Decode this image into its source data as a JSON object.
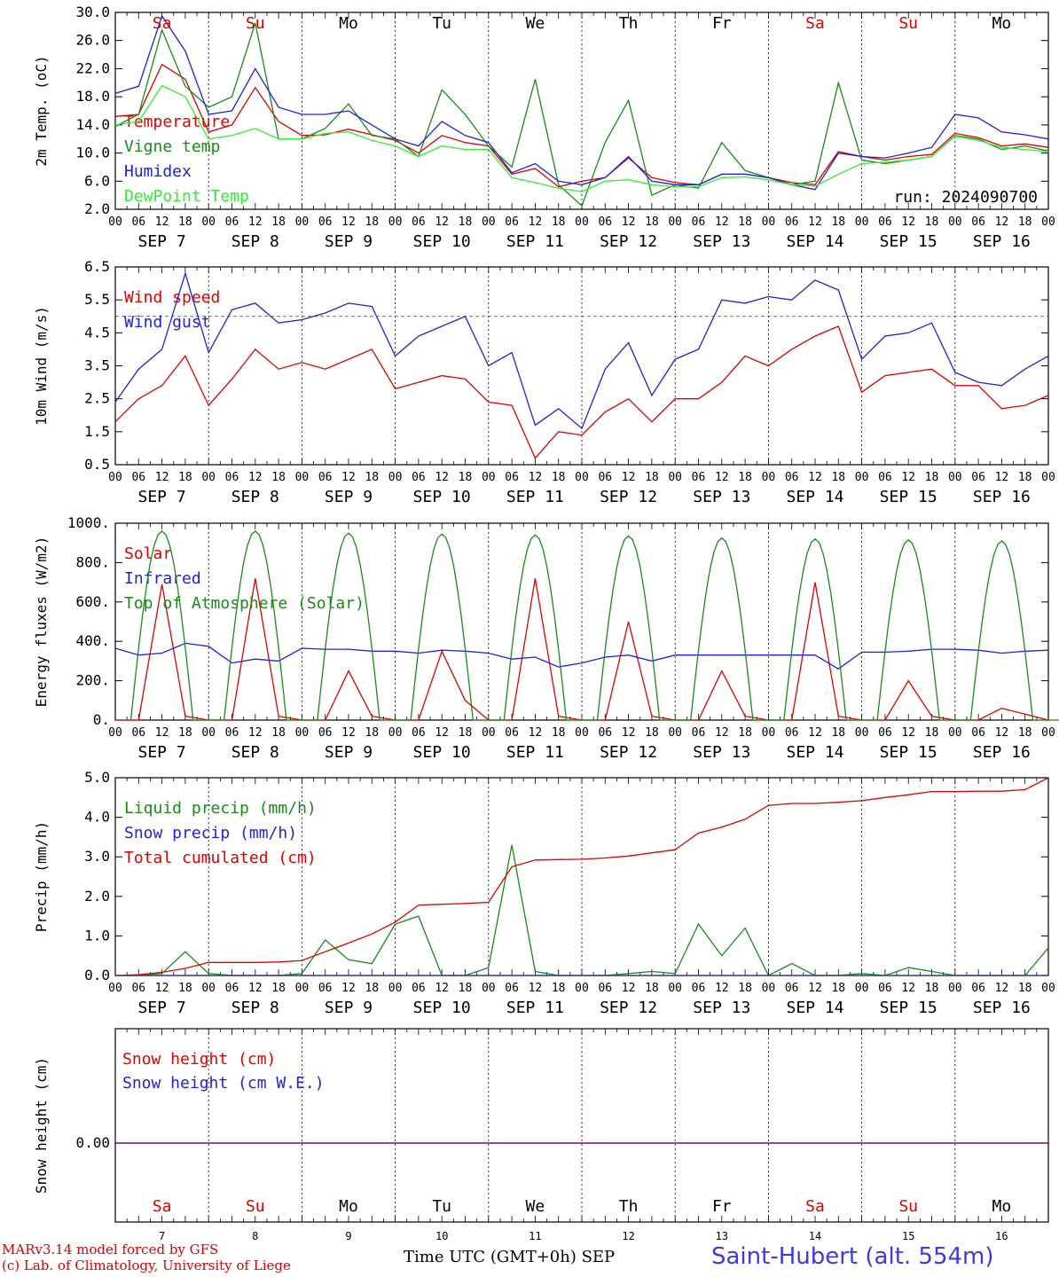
{
  "days": [
    {
      "dow": "Sa",
      "weekend": true,
      "month": "SEP",
      "day": "7"
    },
    {
      "dow": "Su",
      "weekend": true,
      "month": "SEP",
      "day": "8"
    },
    {
      "dow": "Mo",
      "weekend": false,
      "month": "SEP",
      "day": "9"
    },
    {
      "dow": "Tu",
      "weekend": false,
      "month": "SEP",
      "day": "10"
    },
    {
      "dow": "We",
      "weekend": false,
      "month": "SEP",
      "day": "11"
    },
    {
      "dow": "Th",
      "weekend": false,
      "month": "SEP",
      "day": "12"
    },
    {
      "dow": "Fr",
      "weekend": false,
      "month": "SEP",
      "day": "13"
    },
    {
      "dow": "Sa",
      "weekend": true,
      "month": "SEP",
      "day": "14"
    },
    {
      "dow": "Su",
      "weekend": true,
      "month": "SEP",
      "day": "15"
    },
    {
      "dow": "Mo",
      "weekend": false,
      "month": "SEP",
      "day": "16"
    }
  ],
  "hour_ticks": [
    "00",
    "06",
    "12",
    "18"
  ],
  "colors": {
    "red": "#e00000",
    "green": "#1a8a1a",
    "blue": "#2020e0",
    "lightgreen": "#33ee33",
    "purple": "#800080",
    "weekend": "#e00000"
  },
  "footer": {
    "credit1": "MARv3.14 model forced by GFS",
    "credit2": "(c) Lab. of Climatology, University of Liege",
    "xlabel": "Time UTC (GMT+0h) SEP",
    "station": "Saint-Hubert (alt. 554m)"
  },
  "chart_data": [
    {
      "type": "line",
      "ylabel": "2m Temp. (oC)",
      "ylim": [
        2.0,
        30.0
      ],
      "yticks": [
        "2.0",
        "6.0",
        "10.0",
        "14.0",
        "18.0",
        "22.0",
        "26.0",
        "30.0"
      ],
      "annotation": "run: 2024090700",
      "x_hours": [
        0,
        6,
        12,
        18,
        24,
        30,
        36,
        42,
        48,
        54,
        60,
        66,
        72,
        78,
        84,
        90,
        96,
        102,
        108,
        114,
        120,
        126,
        132,
        138,
        144,
        150,
        156,
        162,
        168,
        174,
        180,
        186,
        192,
        198,
        204,
        210,
        216,
        222,
        228,
        234,
        240
      ],
      "series": [
        {
          "name": "Temperature",
          "color": "red",
          "values": [
            15.2,
            15.5,
            22.6,
            20.5,
            13.0,
            14.0,
            19.3,
            14.5,
            12.5,
            12.6,
            13.4,
            12.6,
            11.8,
            10.0,
            12.5,
            11.5,
            11.0,
            7.0,
            7.8,
            5.2,
            6.0,
            6.5,
            9.3,
            6.5,
            5.8,
            5.5,
            7.0,
            7.0,
            6.5,
            5.8,
            5.5,
            10.2,
            9.5,
            9.0,
            9.5,
            9.8,
            12.8,
            12.2,
            11.0,
            11.3,
            10.8
          ]
        },
        {
          "name": "Vigne temp",
          "color": "green",
          "values": [
            13.8,
            15.5,
            27.5,
            19.5,
            16.5,
            18.0,
            28.5,
            12.0,
            12.0,
            13.5,
            17.0,
            12.5,
            12.0,
            9.5,
            19.0,
            15.5,
            11.0,
            8.0,
            20.5,
            5.5,
            2.5,
            11.5,
            17.5,
            4.0,
            5.5,
            5.0,
            11.5,
            7.5,
            6.5,
            5.5,
            6.0,
            20.0,
            9.0,
            8.5,
            9.0,
            9.5,
            12.5,
            12.0,
            10.5,
            11.0,
            10.3
          ]
        },
        {
          "name": "Humidex",
          "color": "blue",
          "values": [
            18.5,
            19.5,
            29.5,
            24.5,
            15.5,
            16.0,
            22.0,
            16.5,
            15.5,
            15.5,
            16.0,
            14.0,
            12.0,
            11.0,
            14.5,
            12.5,
            11.5,
            7.2,
            8.5,
            6.0,
            5.5,
            6.5,
            9.5,
            6.0,
            5.5,
            5.5,
            7.0,
            7.0,
            6.5,
            5.5,
            4.8,
            10.0,
            9.5,
            9.3,
            10.0,
            10.8,
            15.5,
            15.0,
            13.0,
            12.6,
            12.0
          ]
        },
        {
          "name": "DewPoint Temp",
          "color": "lightgreen",
          "values": [
            14.0,
            14.5,
            19.6,
            18.0,
            12.0,
            12.5,
            13.5,
            12.0,
            12.0,
            12.8,
            13.0,
            11.8,
            11.0,
            9.5,
            11.0,
            10.5,
            10.5,
            6.5,
            5.8,
            5.0,
            4.5,
            6.0,
            6.2,
            5.5,
            5.2,
            5.2,
            6.5,
            6.6,
            6.2,
            5.5,
            5.3,
            7.0,
            8.5,
            8.7,
            9.0,
            9.5,
            12.4,
            11.8,
            10.8,
            10.5,
            10.2
          ]
        }
      ]
    },
    {
      "type": "line",
      "ylabel": "10m Wind (m/s)",
      "ylim": [
        0.5,
        6.5
      ],
      "yticks": [
        "0.5",
        "1.5",
        "2.5",
        "3.5",
        "4.5",
        "5.5",
        "6.5"
      ],
      "ref_line": 5.0,
      "x_hours": [
        0,
        6,
        12,
        18,
        24,
        30,
        36,
        42,
        48,
        54,
        60,
        66,
        72,
        78,
        84,
        90,
        96,
        102,
        108,
        114,
        120,
        126,
        132,
        138,
        144,
        150,
        156,
        162,
        168,
        174,
        180,
        186,
        192,
        198,
        204,
        210,
        216,
        222,
        228,
        234,
        240
      ],
      "series": [
        {
          "name": "Wind speed",
          "color": "red",
          "values": [
            1.8,
            2.5,
            2.9,
            3.8,
            2.3,
            3.1,
            4.0,
            3.4,
            3.6,
            3.4,
            3.7,
            4.0,
            2.8,
            3.0,
            3.2,
            3.1,
            2.4,
            2.3,
            0.7,
            1.5,
            1.4,
            2.1,
            2.5,
            1.8,
            2.5,
            2.5,
            3.0,
            3.8,
            3.5,
            4.0,
            4.4,
            4.7,
            2.7,
            3.2,
            3.3,
            3.4,
            2.9,
            2.9,
            2.2,
            2.3,
            2.6
          ]
        },
        {
          "name": "Wind gust",
          "color": "blue",
          "values": [
            2.4,
            3.4,
            4.0,
            6.3,
            3.9,
            5.2,
            5.4,
            4.8,
            4.9,
            5.1,
            5.4,
            5.3,
            3.8,
            4.4,
            4.7,
            5.0,
            3.5,
            3.9,
            1.7,
            2.2,
            1.6,
            3.4,
            4.2,
            2.6,
            3.7,
            4.0,
            5.5,
            5.4,
            5.6,
            5.5,
            6.1,
            5.8,
            3.7,
            4.4,
            4.5,
            4.8,
            3.3,
            3.0,
            2.9,
            3.4,
            3.8
          ]
        }
      ]
    },
    {
      "type": "line",
      "ylabel": "Energy fluxes (W/m2)",
      "ylim": [
        0,
        1000
      ],
      "yticks": [
        "0.",
        "200.",
        "400.",
        "600.",
        "800.",
        "1000."
      ],
      "x_hours": [
        0,
        6,
        12,
        18,
        24,
        30,
        36,
        42,
        48,
        54,
        60,
        66,
        72,
        78,
        84,
        90,
        96,
        102,
        108,
        114,
        120,
        126,
        132,
        138,
        144,
        150,
        156,
        162,
        168,
        174,
        180,
        186,
        192,
        198,
        204,
        210,
        216,
        222,
        228,
        234,
        240
      ],
      "series": [
        {
          "name": "Solar",
          "color": "red",
          "values": [
            0,
            0,
            690,
            20,
            0,
            0,
            720,
            20,
            0,
            0,
            250,
            20,
            0,
            0,
            350,
            100,
            0,
            0,
            720,
            20,
            0,
            0,
            500,
            20,
            0,
            0,
            250,
            20,
            0,
            0,
            700,
            20,
            0,
            0,
            200,
            20,
            0,
            0,
            60,
            30,
            0
          ]
        },
        {
          "name": "Infrared",
          "color": "blue",
          "values": [
            365,
            330,
            340,
            390,
            375,
            290,
            310,
            300,
            365,
            360,
            360,
            350,
            350,
            340,
            355,
            350,
            340,
            310,
            320,
            270,
            290,
            320,
            330,
            300,
            330,
            330,
            330,
            330,
            330,
            330,
            330,
            260,
            345,
            345,
            350,
            360,
            360,
            355,
            340,
            350,
            355
          ]
        },
        {
          "name": "Top of Atmosphere (Solar)",
          "color": "green",
          "peak_values": [
            960,
            960,
            950,
            945,
            940,
            935,
            925,
            920,
            915,
            910
          ]
        }
      ]
    },
    {
      "type": "line",
      "ylabel": "Precip (mm/h)",
      "ylim": [
        0.0,
        5.0
      ],
      "yticks": [
        "0.0",
        "1.0",
        "2.0",
        "3.0",
        "4.0",
        "5.0"
      ],
      "x_hours": [
        0,
        6,
        12,
        18,
        24,
        30,
        36,
        42,
        48,
        54,
        60,
        66,
        72,
        78,
        84,
        90,
        96,
        102,
        108,
        114,
        120,
        126,
        132,
        138,
        144,
        150,
        156,
        162,
        168,
        174,
        180,
        186,
        192,
        198,
        204,
        210,
        216,
        222,
        228,
        234,
        240
      ],
      "series": [
        {
          "name": "Liquid precip (mm/h)",
          "color": "green",
          "values": [
            0.0,
            0.0,
            0.05,
            0.6,
            0.05,
            0.0,
            0.0,
            0.0,
            0.05,
            0.9,
            0.4,
            0.3,
            1.3,
            1.5,
            0.0,
            0.0,
            0.2,
            3.3,
            0.1,
            0.0,
            0.0,
            0.0,
            0.05,
            0.1,
            0.05,
            1.3,
            0.5,
            1.2,
            0.0,
            0.3,
            0.0,
            0.0,
            0.05,
            0.0,
            0.2,
            0.1,
            0.0,
            0.0,
            0.0,
            0.0,
            0.7
          ]
        },
        {
          "name": "Snow precip (mm/h)",
          "color": "blue",
          "values": [
            0,
            0,
            0,
            0,
            0,
            0,
            0,
            0,
            0,
            0,
            0,
            0,
            0,
            0,
            0,
            0,
            0,
            0,
            0,
            0,
            0,
            0,
            0,
            0,
            0,
            0,
            0,
            0,
            0,
            0,
            0,
            0,
            0,
            0,
            0,
            0,
            0,
            0,
            0,
            0,
            0
          ]
        },
        {
          "name": "Total cumulated (cm)",
          "color": "red",
          "values": [
            0.0,
            0.02,
            0.08,
            0.18,
            0.33,
            0.33,
            0.33,
            0.34,
            0.38,
            0.6,
            0.82,
            1.05,
            1.35,
            1.78,
            1.8,
            1.82,
            1.85,
            2.75,
            2.92,
            2.93,
            2.94,
            2.97,
            3.02,
            3.1,
            3.18,
            3.6,
            3.75,
            3.95,
            4.3,
            4.35,
            4.35,
            4.38,
            4.42,
            4.5,
            4.57,
            4.65,
            4.65,
            4.66,
            4.66,
            4.7,
            5.0
          ]
        }
      ]
    },
    {
      "type": "line",
      "ylabel": "Snow height (cm)",
      "ytick": "0.00",
      "series": [
        {
          "name": "Snow height (cm)",
          "color": "red",
          "values": [
            0,
            0
          ]
        },
        {
          "name": "Snow height (cm W.E.)",
          "color": "blue",
          "values": [
            0,
            0
          ]
        }
      ]
    }
  ]
}
